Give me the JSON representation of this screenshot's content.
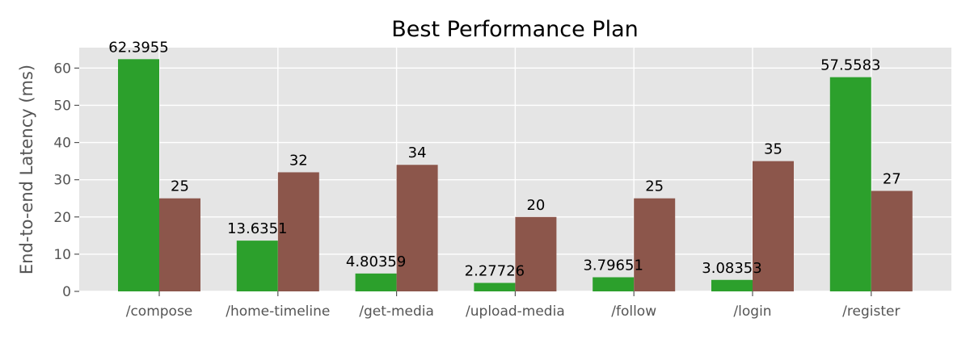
{
  "chart_data": {
    "type": "bar",
    "title": "Best Performance Plan",
    "xlabel": "",
    "ylabel": "End-to-end Latency (ms)",
    "categories": [
      "/compose",
      "/home-timeline",
      "/get-media",
      "/upload-media",
      "/follow",
      "/login",
      "/register"
    ],
    "series": [
      {
        "color": "#2ca02c",
        "values": [
          62.3955,
          13.6351,
          4.80359,
          2.27726,
          3.79651,
          3.08353,
          57.5583
        ],
        "labels": [
          "62.3955",
          "13.6351",
          "4.80359",
          "2.27726",
          "3.79651",
          "3.08353",
          "57.5583"
        ]
      },
      {
        "color": "#8c564b",
        "values": [
          25,
          32,
          34,
          20,
          25,
          35,
          27
        ],
        "labels": [
          "25",
          "32",
          "34",
          "20",
          "25",
          "35",
          "27"
        ]
      }
    ],
    "ylim": [
      0,
      65.5
    ],
    "yticks": [
      0,
      10,
      20,
      30,
      40,
      50,
      60
    ],
    "ytick_labels": [
      "0",
      "10",
      "20",
      "30",
      "40",
      "50",
      "60"
    ],
    "grid": true,
    "legend": "none",
    "background_color": "#e5e5e5",
    "grid_color": "#ffffff"
  }
}
